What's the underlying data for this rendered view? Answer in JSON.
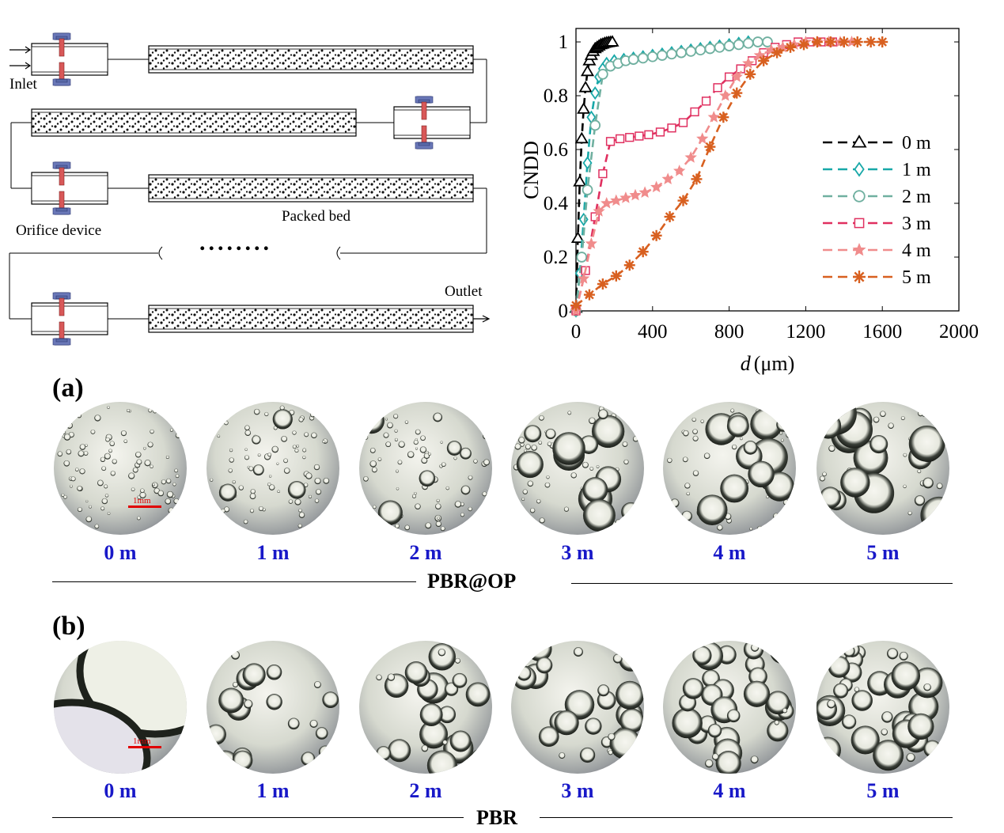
{
  "schematic": {
    "inlet": "Inlet",
    "orifice_device": "Orifice device",
    "packed_bed": "Packed bed",
    "outlet": "Outlet",
    "ellipsis": "........"
  },
  "chart_data": {
    "type": "line",
    "xlabel_italic": "d",
    "xlabel_unit": "(μm)",
    "ylabel": "CNDD",
    "xlim": [
      0,
      2000
    ],
    "ylim": [
      0,
      1.05
    ],
    "xticks": [
      0,
      400,
      800,
      1200,
      1600,
      2000
    ],
    "yticks": [
      0,
      0.2,
      0.4,
      0.6,
      0.8,
      1
    ],
    "xtick_labels": [
      "0",
      "400",
      "800",
      "1200",
      "1600",
      "2000"
    ],
    "ytick_labels": [
      "0",
      "0.2",
      "0.4",
      "0.6",
      "0.8",
      "1"
    ],
    "legend_position": "right-middle",
    "series": [
      {
        "name": "0 m",
        "color": "#000000",
        "marker": "triangle",
        "x": [
          0,
          10,
          20,
          30,
          40,
          50,
          60,
          70,
          80,
          90,
          100,
          110,
          120,
          130,
          140,
          150,
          160,
          170,
          180,
          190
        ],
        "y": [
          0.01,
          0.27,
          0.48,
          0.64,
          0.75,
          0.83,
          0.89,
          0.93,
          0.95,
          0.965,
          0.975,
          0.98,
          0.985,
          0.99,
          0.992,
          0.995,
          0.997,
          0.998,
          0.999,
          1.0
        ]
      },
      {
        "name": "1 m",
        "color": "#18a8a8",
        "marker": "diamond",
        "x": [
          0,
          20,
          40,
          60,
          80,
          100,
          120,
          140,
          160,
          200,
          250,
          300,
          350,
          400,
          450,
          500,
          550,
          600,
          650,
          700,
          750,
          800,
          850,
          900
        ],
        "y": [
          0.0,
          0.14,
          0.34,
          0.55,
          0.72,
          0.81,
          0.87,
          0.9,
          0.92,
          0.93,
          0.935,
          0.94,
          0.945,
          0.95,
          0.955,
          0.96,
          0.965,
          0.97,
          0.975,
          0.98,
          0.985,
          0.99,
          0.995,
          1.0
        ]
      },
      {
        "name": "2 m",
        "color": "#70b0a0",
        "marker": "circle",
        "x": [
          0,
          30,
          60,
          100,
          140,
          180,
          220,
          260,
          300,
          350,
          400,
          450,
          500,
          550,
          600,
          650,
          700,
          750,
          800,
          850,
          900,
          950,
          1000
        ],
        "y": [
          0.0,
          0.2,
          0.45,
          0.69,
          0.88,
          0.91,
          0.92,
          0.93,
          0.935,
          0.94,
          0.945,
          0.95,
          0.955,
          0.96,
          0.965,
          0.97,
          0.975,
          0.98,
          0.985,
          0.99,
          0.995,
          1.0,
          1.0
        ]
      },
      {
        "name": "3 m",
        "color": "#e03060",
        "marker": "square",
        "x": [
          0,
          50,
          100,
          140,
          180,
          230,
          280,
          330,
          380,
          440,
          500,
          560,
          620,
          680,
          740,
          800,
          860,
          920,
          980,
          1040,
          1100,
          1160,
          1220,
          1280,
          1340
        ],
        "y": [
          0.0,
          0.15,
          0.35,
          0.51,
          0.63,
          0.64,
          0.645,
          0.65,
          0.655,
          0.665,
          0.68,
          0.7,
          0.74,
          0.78,
          0.83,
          0.87,
          0.9,
          0.93,
          0.96,
          0.98,
          0.99,
          1.0,
          1.0,
          1.0,
          1.0
        ]
      },
      {
        "name": "4 m",
        "color": "#f08c8c",
        "marker": "star",
        "x": [
          0,
          40,
          80,
          120,
          160,
          210,
          260,
          310,
          360,
          420,
          480,
          540,
          600,
          660,
          720,
          780,
          840,
          900,
          960,
          1020,
          1080,
          1140,
          1200,
          1260,
          1320,
          1380,
          1440
        ],
        "y": [
          0.0,
          0.12,
          0.25,
          0.37,
          0.4,
          0.41,
          0.42,
          0.43,
          0.44,
          0.46,
          0.49,
          0.52,
          0.57,
          0.64,
          0.72,
          0.8,
          0.87,
          0.92,
          0.95,
          0.97,
          0.98,
          0.99,
          1.0,
          1.0,
          1.0,
          1.0,
          1.0
        ]
      },
      {
        "name": "5 m",
        "color": "#d86020",
        "marker": "asterisk",
        "x": [
          0,
          70,
          140,
          210,
          280,
          350,
          420,
          490,
          560,
          630,
          700,
          770,
          840,
          910,
          980,
          1050,
          1120,
          1190,
          1260,
          1330,
          1400,
          1470,
          1540,
          1600
        ],
        "y": [
          0.02,
          0.06,
          0.1,
          0.13,
          0.17,
          0.22,
          0.28,
          0.35,
          0.41,
          0.49,
          0.61,
          0.72,
          0.81,
          0.88,
          0.93,
          0.96,
          0.98,
          0.99,
          1.0,
          1.0,
          1.0,
          1.0,
          1.0,
          1.0
        ]
      }
    ]
  },
  "panel_a": {
    "letter": "(a)",
    "title": "PBR@OP",
    "scale_label": "1mm",
    "labels": [
      "0 m",
      "1 m",
      "2 m",
      "3 m",
      "4 m",
      "5 m"
    ]
  },
  "panel_b": {
    "letter": "(b)",
    "title": "PBR",
    "scale_label": "1mm",
    "labels": [
      "0 m",
      "1 m",
      "2 m",
      "3 m",
      "4 m",
      "5 m"
    ]
  }
}
